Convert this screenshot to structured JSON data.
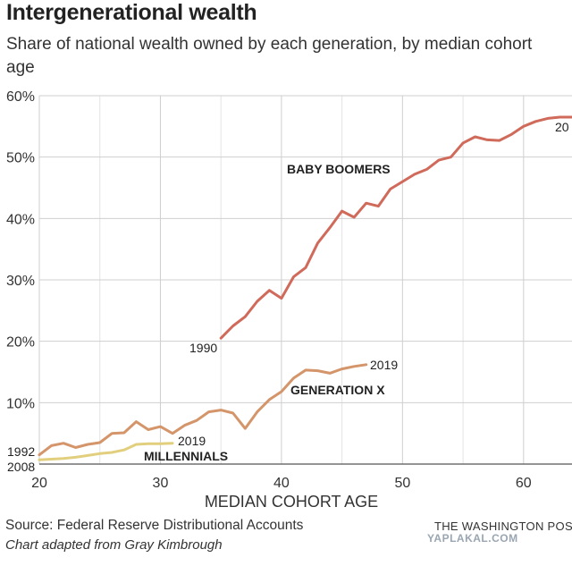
{
  "header": {
    "title": "Intergenerational wealth",
    "subtitle": "Share of national wealth owned by each generation, by median cohort age"
  },
  "footer": {
    "source": "Source: Federal Reserve Distributional Accounts",
    "credit": "Chart adapted from Gray Kimbrough",
    "publisher": "THE WASHINGTON POS",
    "watermark": "YAPLAKAL.COM"
  },
  "chart_data": {
    "type": "line",
    "xlabel": "MEDIAN COHORT AGE",
    "ylabel": "",
    "xlim": [
      20,
      64
    ],
    "ylim": [
      0,
      60
    ],
    "x_ticks": [
      20,
      30,
      40,
      50,
      60
    ],
    "x_tick_labels": [
      "20",
      "30",
      "40",
      "50",
      "60"
    ],
    "y_ticks": [
      10,
      20,
      30,
      40,
      50,
      60
    ],
    "y_tick_labels": [
      "10%",
      "20%",
      "30%",
      "40%",
      "50%",
      "60%"
    ],
    "grid": true,
    "legend": "none",
    "series": [
      {
        "name": "BABY BOOMERS",
        "color": "#d06a5a",
        "start_label": "1990",
        "end_label": "20",
        "x": [
          35,
          36,
          37,
          38,
          39,
          40,
          41,
          42,
          43,
          44,
          45,
          46,
          47,
          48,
          49,
          50,
          51,
          52,
          53,
          54,
          55,
          56,
          57,
          58,
          59,
          60,
          61,
          62,
          63,
          64
        ],
        "y": [
          20.5,
          22.5,
          24,
          26.5,
          28.3,
          27,
          30.5,
          32,
          36,
          38.5,
          41.2,
          40.2,
          42.5,
          42,
          44.8,
          46,
          47.2,
          48,
          49.5,
          50,
          52.3,
          53.3,
          52.8,
          52.7,
          53.7,
          55,
          55.8,
          56.3,
          56.5,
          56.5
        ]
      },
      {
        "name": "GENERATION X",
        "color": "#d4956a",
        "start_label": "1992",
        "end_label": "2019",
        "x": [
          20,
          21,
          22,
          23,
          24,
          25,
          26,
          27,
          28,
          29,
          30,
          31,
          32,
          33,
          34,
          35,
          36,
          37,
          38,
          39,
          40,
          41,
          42,
          43,
          44,
          45,
          46,
          47
        ],
        "y": [
          1.5,
          3,
          3.4,
          2.7,
          3.2,
          3.5,
          5,
          5.1,
          6.9,
          5.6,
          6.1,
          5,
          6.3,
          7.1,
          8.5,
          8.8,
          8.3,
          5.8,
          8.5,
          10.5,
          11.8,
          14,
          15.3,
          15.2,
          14.8,
          15.5,
          15.9,
          16.2
        ]
      },
      {
        "name": "MILLENNIALS",
        "color": "#e2cf7e",
        "start_label": "2008",
        "end_label": "2019",
        "x": [
          20,
          21,
          22,
          23,
          24,
          25,
          26,
          27,
          28,
          29,
          30,
          31
        ],
        "y": [
          0.7,
          0.8,
          0.9,
          1.1,
          1.4,
          1.7,
          1.9,
          2.3,
          3.2,
          3.3,
          3.3,
          3.4
        ]
      }
    ]
  }
}
